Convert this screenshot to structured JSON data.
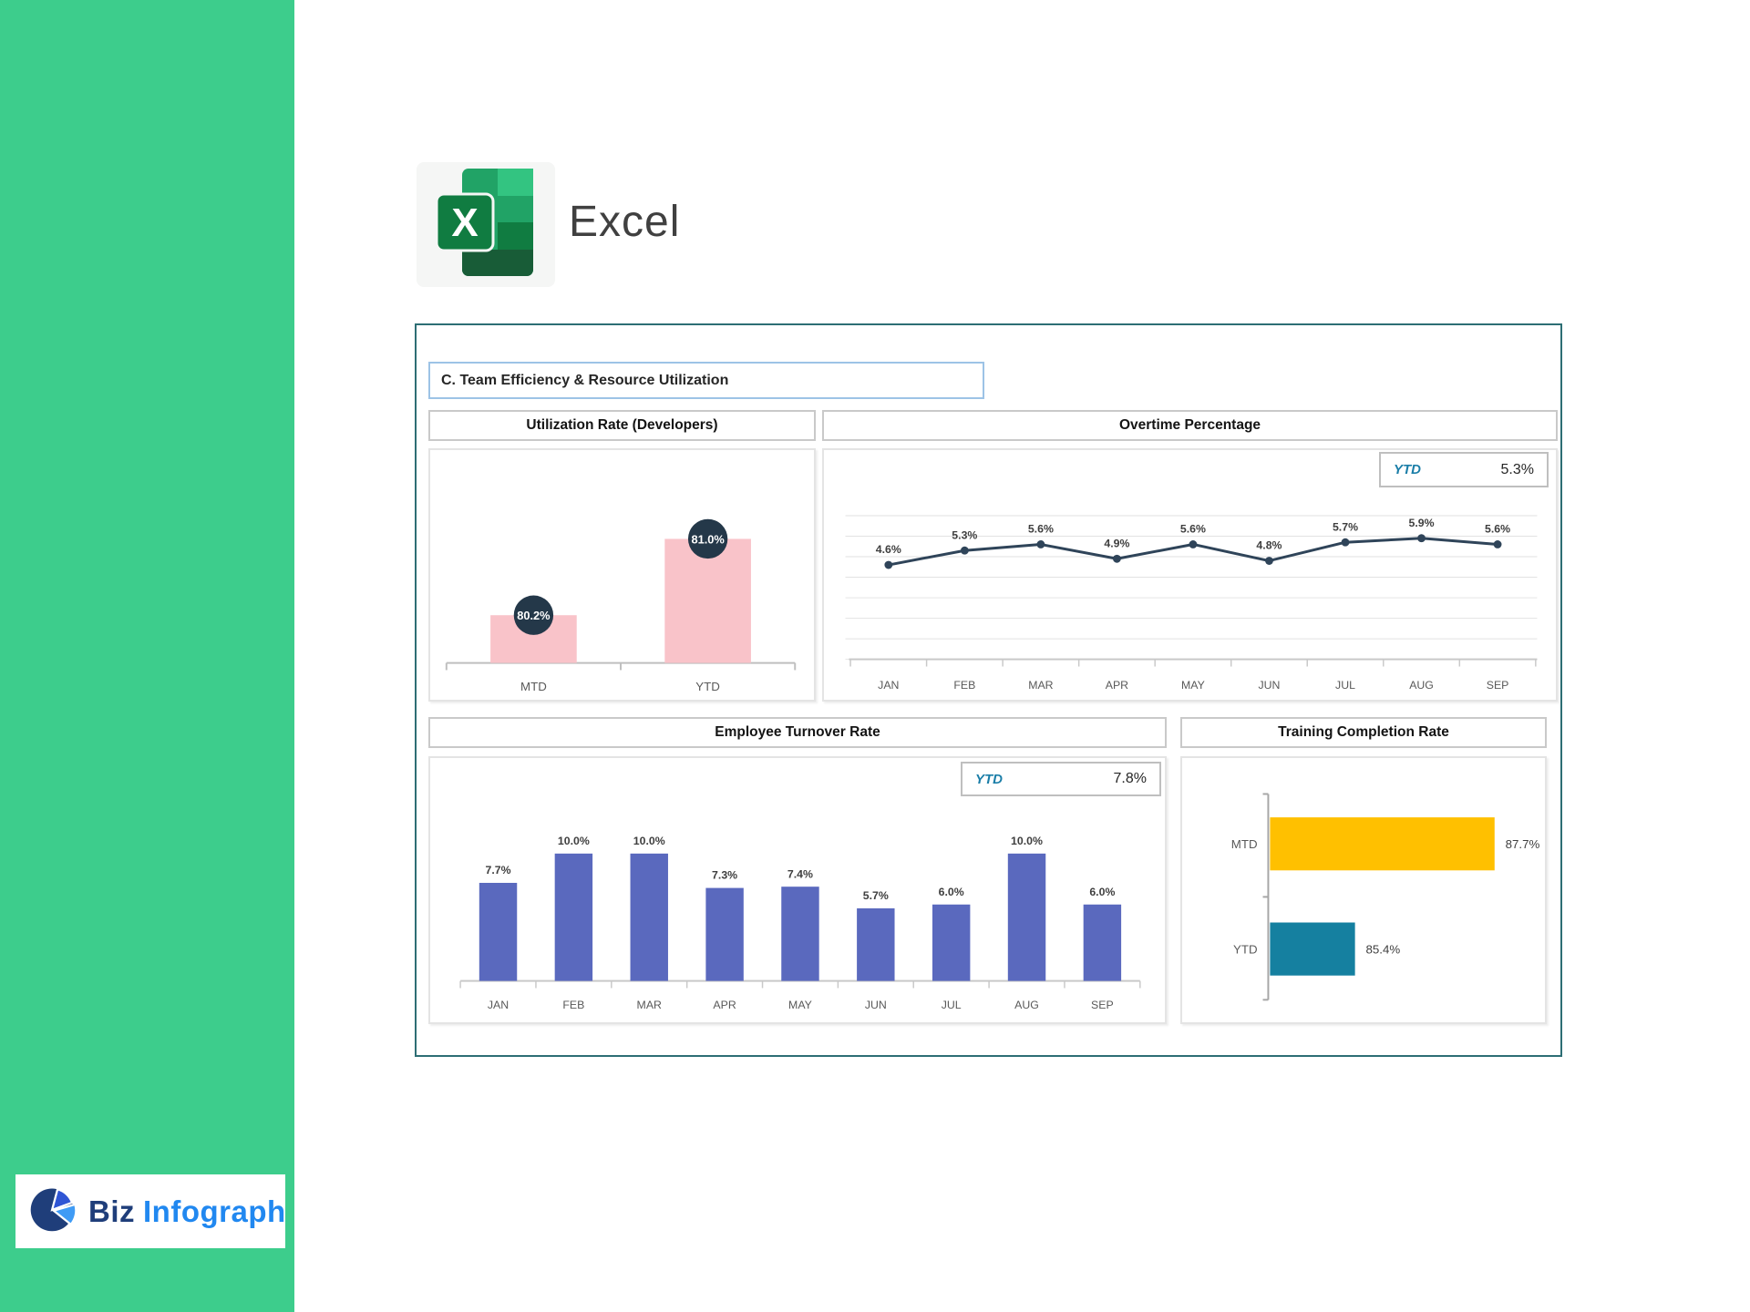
{
  "page": {
    "background": "#FFFFFF",
    "sidebar_color": "#3DCD8C"
  },
  "header": {
    "app_icon": "excel-icon",
    "app_title": "Excel"
  },
  "dashboard": {
    "border_color": "#2D6E74",
    "section_title": "C. Team Efficiency & Resource Utilization"
  },
  "chart_data": [
    {
      "id": "utilization-rate",
      "type": "bar",
      "title": "Utilization Rate (Developers)",
      "categories": [
        "MTD",
        "YTD"
      ],
      "values": [
        80.2,
        81.0
      ],
      "data_labels": [
        "80.2%",
        "81.0%"
      ],
      "axis": {
        "min": 79.7,
        "max": 81.3,
        "grid": false,
        "tick_labels_visible": false
      },
      "colors": {
        "bar": "#F9C3C9",
        "data_label_bg": "#243849",
        "data_label_text": "#FFFFFF"
      }
    },
    {
      "id": "overtime-percentage",
      "type": "line",
      "title": "Overtime Percentage",
      "ytd": {
        "label": "YTD",
        "value": "5.3%"
      },
      "categories": [
        "JAN",
        "FEB",
        "MAR",
        "APR",
        "MAY",
        "JUN",
        "JUL",
        "AUG",
        "SEP"
      ],
      "values": [
        4.6,
        5.3,
        5.6,
        4.9,
        5.6,
        4.8,
        5.7,
        5.9,
        5.6
      ],
      "data_labels": [
        "4.6%",
        "5.3%",
        "5.6%",
        "4.9%",
        "5.6%",
        "4.8%",
        "5.7%",
        "5.9%",
        "5.6%"
      ],
      "axis": {
        "min": 0,
        "max": 7,
        "gridline_step": 1,
        "grid": true,
        "tick_labels_visible": false
      },
      "colors": {
        "line": "#2F4459",
        "marker": "#2F4459",
        "gridline": "#E2E2E2"
      }
    },
    {
      "id": "employee-turnover-rate",
      "type": "bar",
      "title": "Employee Turnover Rate",
      "ytd": {
        "label": "YTD",
        "value": "7.8%"
      },
      "categories": [
        "JAN",
        "FEB",
        "MAR",
        "APR",
        "MAY",
        "JUN",
        "JUL",
        "AUG",
        "SEP"
      ],
      "values": [
        7.7,
        10.0,
        10.0,
        7.3,
        7.4,
        5.7,
        6.0,
        10.0,
        6.0
      ],
      "data_labels": [
        "7.7%",
        "10.0%",
        "10.0%",
        "7.3%",
        "7.4%",
        "5.7%",
        "6.0%",
        "10.0%",
        "6.0%"
      ],
      "axis": {
        "min": 0,
        "max": 17.5,
        "grid": false,
        "tick_labels_visible": false
      },
      "colors": {
        "bar": "#5A69BE"
      }
    },
    {
      "id": "training-completion-rate",
      "type": "hbar",
      "title": "Training Completion Rate",
      "categories": [
        "MTD",
        "YTD"
      ],
      "values": [
        87.7,
        85.4
      ],
      "data_labels": [
        "87.7%",
        "85.4%"
      ],
      "axis": {
        "min": 84,
        "max": 88,
        "grid": false,
        "tick_labels_visible": false
      },
      "colors": {
        "bars": [
          "#FFC000",
          "#1580A0"
        ]
      }
    }
  ],
  "footer_logo": {
    "icon": "pie-chart-icon",
    "brand_primary": "Biz",
    "brand_secondary": "Infograph",
    "colors": {
      "primary": "#1F3E7A",
      "secondary": "#2188F0"
    }
  }
}
